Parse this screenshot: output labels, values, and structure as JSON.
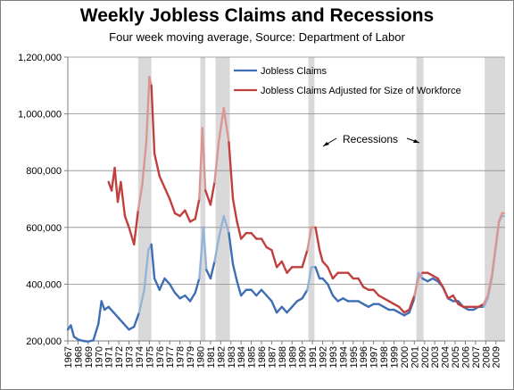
{
  "chart_data": {
    "type": "line",
    "title": "Weekly Jobless Claims and Recessions",
    "subtitle": "Four week moving average, Source: Department of Labor",
    "xlabel": "",
    "ylabel": "",
    "xlim": [
      1967,
      2009.9
    ],
    "ylim": [
      200000,
      1200000
    ],
    "grid": "horizontal",
    "legend_position": "top-right",
    "yticks": [
      200000,
      400000,
      600000,
      800000,
      1000000,
      1200000
    ],
    "ytick_labels": [
      "200,000",
      "400,000",
      "600,000",
      "800,000",
      "1,000,000",
      "1,200,000"
    ],
    "xticks": [
      1967,
      1968,
      1969,
      1970,
      1971,
      1972,
      1973,
      1974,
      1975,
      1976,
      1977,
      1978,
      1979,
      1980,
      1981,
      1982,
      1983,
      1984,
      1985,
      1986,
      1987,
      1988,
      1989,
      1990,
      1991,
      1992,
      1993,
      1994,
      1995,
      1996,
      1997,
      1998,
      1999,
      2000,
      2001,
      2002,
      2003,
      2004,
      2005,
      2006,
      2007,
      2008,
      2009
    ],
    "xtick_labels": [
      "1967",
      "1968",
      "1969",
      "1970",
      "1971",
      "1972",
      "1973",
      "1974",
      "1975",
      "1976",
      "1977",
      "1978",
      "1979",
      "1980",
      "1981",
      "1982",
      "1983",
      "1984",
      "1985",
      "1986",
      "1987",
      "1988",
      "1989",
      "1990",
      "1991",
      "1992",
      "1993",
      "1994",
      "1995",
      "1996",
      "1997",
      "1998",
      "1999",
      "2000",
      "2001",
      "2002",
      "2003",
      "2004",
      "2005",
      "2006",
      "2007",
      "2008",
      "2009"
    ],
    "recessions": [
      [
        1973.9,
        1975.2
      ],
      [
        1980.0,
        1980.5
      ],
      [
        1981.5,
        1982.9
      ],
      [
        1990.6,
        1991.2
      ],
      [
        2001.2,
        2001.9
      ],
      [
        2007.9,
        2009.9
      ]
    ],
    "recession_color": "#d9d9d9",
    "series": [
      {
        "name": "Jobless Claims",
        "color": "#3e6eb4",
        "recession_color": "#95b3d7",
        "x": [
          1967.0,
          1967.3,
          1967.6,
          1968.0,
          1968.5,
          1969.0,
          1969.5,
          1970.0,
          1970.3,
          1970.6,
          1971.0,
          1971.5,
          1972.0,
          1972.5,
          1973.0,
          1973.5,
          1974.0,
          1974.5,
          1974.9,
          1975.2,
          1975.5,
          1976.0,
          1976.5,
          1977.0,
          1977.5,
          1978.0,
          1978.5,
          1979.0,
          1979.5,
          1979.9,
          1980.3,
          1980.6,
          1981.0,
          1981.4,
          1981.8,
          1982.3,
          1982.8,
          1983.2,
          1983.6,
          1984.0,
          1984.5,
          1985.0,
          1985.5,
          1986.0,
          1986.5,
          1987.0,
          1987.5,
          1988.0,
          1988.5,
          1989.0,
          1989.5,
          1990.0,
          1990.5,
          1990.9,
          1991.3,
          1991.7,
          1992.0,
          1992.5,
          1993.0,
          1993.5,
          1994.0,
          1994.5,
          1995.0,
          1995.5,
          1996.0,
          1996.5,
          1997.0,
          1997.5,
          1998.0,
          1998.5,
          1999.0,
          1999.5,
          2000.0,
          2000.5,
          2001.0,
          2001.4,
          2001.8,
          2002.3,
          2002.8,
          2003.3,
          2003.8,
          2004.3,
          2004.8,
          2005.3,
          2005.8,
          2006.3,
          2006.8,
          2007.3,
          2007.8,
          2008.2,
          2008.6,
          2009.0,
          2009.3,
          2009.6,
          2009.8
        ],
        "y": [
          240000,
          255000,
          215000,
          205000,
          200000,
          198000,
          202000,
          260000,
          340000,
          310000,
          320000,
          300000,
          280000,
          260000,
          240000,
          250000,
          300000,
          380000,
          520000,
          540000,
          420000,
          380000,
          420000,
          400000,
          370000,
          350000,
          360000,
          340000,
          370000,
          420000,
          600000,
          450000,
          420000,
          480000,
          560000,
          640000,
          580000,
          470000,
          410000,
          360000,
          380000,
          380000,
          360000,
          380000,
          360000,
          340000,
          300000,
          320000,
          300000,
          320000,
          340000,
          350000,
          380000,
          460000,
          460000,
          420000,
          420000,
          400000,
          360000,
          340000,
          350000,
          340000,
          340000,
          340000,
          330000,
          320000,
          330000,
          330000,
          320000,
          310000,
          310000,
          300000,
          290000,
          300000,
          350000,
          440000,
          420000,
          410000,
          420000,
          410000,
          390000,
          350000,
          340000,
          340000,
          320000,
          310000,
          310000,
          320000,
          320000,
          350000,
          420000,
          530000,
          620000,
          640000,
          640000
        ]
      },
      {
        "name": "Jobless Claims  Adjusted for Size of Workforce",
        "color": "#c0403e",
        "recession_color": "#d99694",
        "x": [
          1971.0,
          1971.3,
          1971.6,
          1971.9,
          1972.2,
          1972.6,
          1973.0,
          1973.5,
          1973.9,
          1974.3,
          1974.7,
          1975.0,
          1975.2,
          1975.5,
          1976.0,
          1976.5,
          1977.0,
          1977.5,
          1978.0,
          1978.5,
          1979.0,
          1979.5,
          1979.9,
          1980.2,
          1980.5,
          1981.0,
          1981.4,
          1981.8,
          1982.3,
          1982.8,
          1983.2,
          1983.6,
          1984.0,
          1984.5,
          1985.0,
          1985.5,
          1986.0,
          1986.5,
          1987.0,
          1987.5,
          1988.0,
          1988.5,
          1989.0,
          1989.5,
          1990.0,
          1990.5,
          1990.9,
          1991.3,
          1991.7,
          1992.0,
          1992.5,
          1993.0,
          1993.5,
          1994.0,
          1994.5,
          1995.0,
          1995.5,
          1996.0,
          1996.5,
          1997.0,
          1997.5,
          1998.0,
          1998.5,
          1999.0,
          1999.5,
          2000.0,
          2000.5,
          2001.0,
          2001.4,
          2001.8,
          2002.3,
          2002.8,
          2003.3,
          2003.8,
          2004.3,
          2004.8,
          2005.3,
          2005.8,
          2006.3,
          2006.8,
          2007.3,
          2007.8,
          2008.2,
          2008.6,
          2009.0,
          2009.3,
          2009.6,
          2009.8
        ],
        "y": [
          760000,
          730000,
          810000,
          690000,
          760000,
          640000,
          600000,
          540000,
          660000,
          750000,
          900000,
          1130000,
          1100000,
          860000,
          780000,
          740000,
          700000,
          650000,
          640000,
          660000,
          620000,
          630000,
          700000,
          950000,
          730000,
          680000,
          760000,
          900000,
          1020000,
          900000,
          700000,
          620000,
          560000,
          580000,
          580000,
          560000,
          560000,
          530000,
          520000,
          460000,
          480000,
          440000,
          460000,
          460000,
          460000,
          520000,
          600000,
          600000,
          520000,
          480000,
          460000,
          420000,
          440000,
          440000,
          440000,
          420000,
          420000,
          390000,
          380000,
          380000,
          360000,
          350000,
          340000,
          330000,
          320000,
          300000,
          310000,
          360000,
          420000,
          440000,
          440000,
          430000,
          420000,
          390000,
          350000,
          360000,
          330000,
          320000,
          320000,
          320000,
          320000,
          330000,
          360000,
          430000,
          540000,
          620000,
          650000,
          650000
        ]
      }
    ],
    "annotation": "Recessions"
  }
}
